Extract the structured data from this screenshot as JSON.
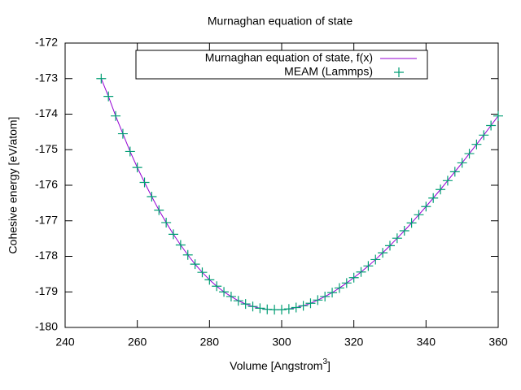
{
  "chart_data": {
    "type": "line_scatter",
    "title": "Murnaghan equation of state",
    "xlabel": "Volume [Angstrom",
    "xlabel_sup": "3",
    "xlabel_end": "]",
    "ylabel": "Cohesive energy [eV/atom]",
    "x": [
      250,
      252,
      254,
      256,
      258,
      260,
      262,
      264,
      266,
      268,
      270,
      272,
      274,
      276,
      278,
      280,
      282,
      284,
      286,
      288,
      290,
      292,
      294,
      296,
      298,
      300,
      302,
      304,
      306,
      308,
      310,
      312,
      314,
      316,
      318,
      320,
      322,
      324,
      326,
      328,
      330,
      332,
      334,
      336,
      338,
      340,
      342,
      344,
      346,
      348,
      350,
      352,
      354,
      356,
      358,
      360
    ],
    "series": [
      {
        "name": "Murnaghan equation of state, f(x)",
        "color": "#9400d3",
        "kind": "line",
        "values": [
          -173.0,
          -173.5,
          -174.05,
          -174.55,
          -175.05,
          -175.5,
          -175.92,
          -176.32,
          -176.7,
          -177.05,
          -177.38,
          -177.68,
          -177.96,
          -178.22,
          -178.45,
          -178.66,
          -178.84,
          -179.0,
          -179.13,
          -179.25,
          -179.34,
          -179.41,
          -179.46,
          -179.49,
          -179.5,
          -179.5,
          -179.48,
          -179.44,
          -179.39,
          -179.32,
          -179.23,
          -179.13,
          -179.02,
          -178.89,
          -178.75,
          -178.6,
          -178.44,
          -178.27,
          -178.09,
          -177.9,
          -177.7,
          -177.49,
          -177.28,
          -177.06,
          -176.83,
          -176.6,
          -176.36,
          -176.12,
          -175.87,
          -175.62,
          -175.37,
          -175.11,
          -174.85,
          -174.59,
          -174.32,
          -174.05
        ]
      },
      {
        "name": "MEAM (Lammps)",
        "color": "#009e73",
        "kind": "points",
        "values": [
          -173.0,
          -173.5,
          -174.05,
          -174.55,
          -175.05,
          -175.5,
          -175.92,
          -176.32,
          -176.7,
          -177.05,
          -177.38,
          -177.68,
          -177.96,
          -178.22,
          -178.45,
          -178.66,
          -178.84,
          -179.0,
          -179.13,
          -179.25,
          -179.34,
          -179.41,
          -179.46,
          -179.49,
          -179.5,
          -179.5,
          -179.48,
          -179.44,
          -179.39,
          -179.32,
          -179.23,
          -179.13,
          -179.02,
          -178.89,
          -178.75,
          -178.6,
          -178.44,
          -178.27,
          -178.09,
          -177.9,
          -177.7,
          -177.49,
          -177.28,
          -177.06,
          -176.83,
          -176.6,
          -176.36,
          -176.12,
          -175.87,
          -175.62,
          -175.37,
          -175.11,
          -174.85,
          -174.59,
          -174.32,
          -174.05
        ]
      }
    ],
    "xlim": [
      240,
      360
    ],
    "xticks": [
      240,
      260,
      280,
      300,
      320,
      340,
      360
    ],
    "ylim": [
      -180,
      -172
    ],
    "yticks": [
      -180,
      -179,
      -178,
      -177,
      -176,
      -175,
      -174,
      -173,
      -172
    ],
    "grid": false,
    "legend": "top"
  }
}
